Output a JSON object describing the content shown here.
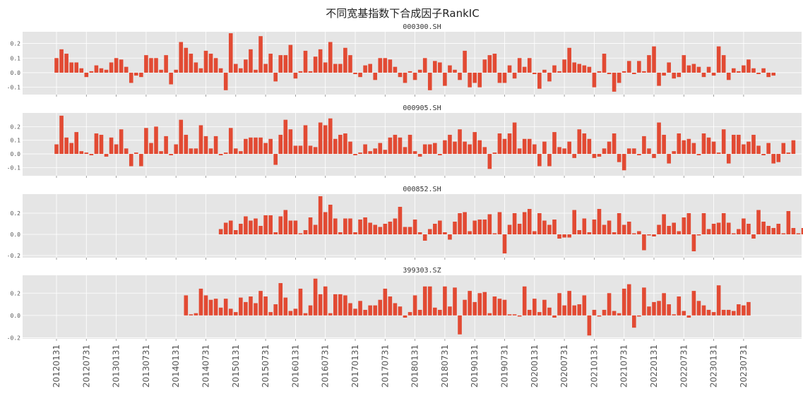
{
  "suptitle": "不同宽基指数下合成因子RankIC",
  "colors": {
    "bar": "#E24A33",
    "panel": "#E5E5E5",
    "grid": "#FFFFFF",
    "tick": "#555555"
  },
  "x_tick_labels": [
    "20120131",
    "20120731",
    "20130131",
    "20130731",
    "20140131",
    "20140731",
    "20150131",
    "20150731",
    "20160131",
    "20160731",
    "20170131",
    "20170731",
    "20180131",
    "20180731",
    "20190131",
    "20190731",
    "20200131",
    "20200731",
    "20210131",
    "20210731",
    "20220131",
    "20220731",
    "20230131",
    "20230731"
  ],
  "chart_data": [
    {
      "type": "bar",
      "title": "000300.SH",
      "start": "20120131",
      "ylim": [
        -0.15,
        0.28
      ],
      "yticks": [
        -0.1,
        0.0,
        0.1,
        0.2
      ],
      "ytick_labels": [
        "-0.1",
        "0.0",
        "0.1",
        "0.2"
      ],
      "values": [
        0.1,
        0.16,
        0.13,
        0.07,
        0.07,
        0.03,
        -0.03,
        0.01,
        0.05,
        0.03,
        0.02,
        0.07,
        0.1,
        0.09,
        0.04,
        -0.07,
        -0.02,
        -0.03,
        0.12,
        0.1,
        0.1,
        0.02,
        0.12,
        -0.08,
        0.02,
        0.21,
        0.17,
        0.13,
        0.07,
        0.03,
        0.15,
        0.13,
        0.1,
        0.03,
        -0.12,
        0.27,
        0.06,
        0.03,
        0.09,
        0.16,
        0.02,
        0.25,
        0.06,
        0.13,
        -0.06,
        0.12,
        0.12,
        0.19,
        -0.04,
        0.01,
        0.15,
        0.01,
        0.11,
        0.16,
        0.07,
        0.21,
        0.06,
        0.06,
        0.17,
        0.12,
        -0.01,
        -0.03,
        0.05,
        0.06,
        -0.05,
        0.1,
        0.1,
        0.09,
        0.04,
        -0.03,
        -0.07,
        0.01,
        -0.05,
        0.02,
        0.1,
        -0.12,
        0.08,
        0.07,
        -0.09,
        0.05,
        0.02,
        -0.05,
        0.15,
        -0.1,
        -0.07,
        -0.1,
        0.09,
        0.12,
        0.13,
        -0.07,
        -0.07,
        0.05,
        -0.04,
        0.1,
        0.04,
        0.1,
        -0.01,
        -0.11,
        0.02,
        -0.06,
        0.05,
        0.01,
        0.09,
        0.17,
        0.07,
        0.06,
        0.05,
        0.04,
        -0.1,
        0.01,
        0.13,
        -0.01,
        -0.13,
        -0.07,
        0.01,
        0.08,
        -0.01,
        0.08,
        0.01,
        0.12,
        0.18,
        -0.09,
        -0.02,
        0.07,
        -0.04,
        -0.03,
        0.12,
        0.05,
        0.06,
        0.04,
        -0.03,
        0.04,
        -0.02,
        0.18,
        0.12,
        -0.05,
        0.03,
        0.01,
        0.05,
        0.09,
        0.03,
        -0.01,
        0.03,
        -0.03,
        -0.02
      ]
    },
    {
      "type": "bar",
      "title": "000905.SH",
      "start": "20120131",
      "ylim": [
        -0.16,
        0.3
      ],
      "yticks": [
        -0.1,
        0.0,
        0.1,
        0.2
      ],
      "ytick_labels": [
        "-0.1",
        "0.0",
        "0.1",
        "0.2"
      ],
      "values": [
        0.07,
        0.28,
        0.12,
        0.08,
        0.16,
        0.02,
        0.01,
        -0.01,
        0.15,
        0.14,
        -0.02,
        0.12,
        0.07,
        0.18,
        0.04,
        -0.09,
        0.01,
        -0.09,
        0.19,
        0.08,
        0.2,
        0.02,
        0.13,
        -0.01,
        0.07,
        0.25,
        0.14,
        0.04,
        0.04,
        0.21,
        0.13,
        0.04,
        0.13,
        -0.01,
        0.01,
        0.19,
        0.04,
        0.02,
        0.11,
        0.12,
        0.12,
        0.12,
        0.08,
        0.11,
        -0.08,
        0.14,
        0.25,
        0.18,
        0.06,
        0.06,
        0.21,
        0.06,
        0.05,
        0.23,
        0.21,
        0.26,
        0.11,
        0.14,
        0.15,
        0.09,
        -0.01,
        0.01,
        0.07,
        0.02,
        0.04,
        0.08,
        0.03,
        0.12,
        0.14,
        0.12,
        0.05,
        0.14,
        0.02,
        -0.02,
        0.07,
        0.07,
        0.08,
        -0.01,
        0.1,
        0.14,
        0.09,
        0.18,
        0.09,
        0.07,
        0.16,
        0.1,
        0.05,
        -0.11,
        0.01,
        0.15,
        0.11,
        0.15,
        0.23,
        0.04,
        0.11,
        0.11,
        0.07,
        -0.09,
        0.09,
        -0.09,
        0.16,
        0.05,
        0.04,
        0.09,
        -0.03,
        0.18,
        0.15,
        0.11,
        -0.03,
        -0.02,
        0.04,
        0.09,
        0.15,
        -0.06,
        -0.12,
        0.04,
        0.04,
        -0.01,
        0.13,
        0.04,
        -0.03,
        0.23,
        0.14,
        -0.07,
        0.02,
        0.15,
        0.1,
        0.11,
        0.08,
        -0.01,
        0.15,
        0.12,
        0.09,
        0.01,
        0.18,
        -0.07,
        0.14,
        0.14,
        0.07,
        0.09,
        0.14,
        0.06,
        -0.01,
        0.08,
        -0.07,
        -0.06,
        0.08,
        0.01,
        0.1
      ]
    },
    {
      "type": "bar",
      "title": "000852.SH",
      "start": "20141031",
      "ylim": [
        -0.22,
        0.38
      ],
      "yticks": [
        -0.2,
        0.0,
        0.2
      ],
      "ytick_labels": [
        "-0.2",
        "0.0",
        "0.2"
      ],
      "values": [
        0.05,
        0.11,
        0.13,
        0.04,
        0.1,
        0.17,
        0.13,
        0.15,
        0.08,
        0.18,
        0.18,
        0.02,
        0.17,
        0.23,
        0.13,
        0.13,
        0.01,
        0.04,
        0.16,
        0.09,
        0.36,
        0.21,
        0.28,
        0.15,
        0.02,
        0.15,
        0.15,
        0.02,
        0.14,
        0.16,
        0.11,
        0.09,
        0.07,
        0.1,
        0.12,
        0.15,
        0.26,
        0.07,
        0.07,
        0.14,
        0.02,
        -0.06,
        0.05,
        0.1,
        0.13,
        0.02,
        -0.05,
        0.12,
        0.2,
        0.21,
        0.03,
        0.13,
        0.14,
        0.14,
        0.19,
        0.01,
        0.21,
        -0.18,
        0.09,
        0.2,
        0.1,
        0.21,
        0.24,
        0.03,
        0.2,
        0.13,
        0.09,
        0.14,
        -0.04,
        -0.03,
        -0.03,
        0.23,
        0.04,
        0.15,
        0.02,
        0.14,
        0.24,
        0.09,
        0.13,
        0.02,
        0.2,
        0.09,
        0.12,
        0.01,
        0.03,
        -0.15,
        -0.01,
        -0.02,
        0.09,
        0.19,
        0.08,
        0.11,
        0.03,
        0.16,
        0.2,
        -0.16,
        -0.01,
        0.2,
        0.05,
        0.1,
        0.11,
        0.2,
        0.11,
        0.01,
        0.05,
        0.15,
        0.1,
        -0.04,
        0.23,
        0.12,
        0.08,
        0.06,
        0.1,
        0.01,
        0.22,
        0.06,
        0.01,
        0.06,
        0.08,
        0.11
      ]
    },
    {
      "type": "bar",
      "title": "399303.SZ",
      "start": "20140331",
      "ylim": [
        -0.21,
        0.36
      ],
      "yticks": [
        -0.2,
        0.0,
        0.2
      ],
      "ytick_labels": [
        "-0.2",
        "0.0",
        "0.2"
      ],
      "values": [
        0.18,
        0.01,
        0.02,
        0.24,
        0.18,
        0.14,
        0.15,
        0.07,
        0.15,
        0.06,
        0.03,
        0.16,
        0.12,
        0.17,
        0.11,
        0.22,
        0.17,
        0.03,
        0.1,
        0.29,
        0.16,
        0.04,
        0.06,
        0.24,
        0.02,
        0.09,
        0.33,
        0.19,
        0.26,
        0.02,
        0.19,
        0.19,
        0.18,
        0.11,
        0.06,
        0.13,
        0.05,
        0.09,
        0.09,
        0.14,
        0.24,
        0.17,
        0.11,
        0.08,
        -0.02,
        0.03,
        0.18,
        0.05,
        0.26,
        0.26,
        0.07,
        0.05,
        0.26,
        0.08,
        0.25,
        -0.17,
        0.14,
        0.22,
        0.12,
        0.2,
        0.21,
        0.02,
        0.17,
        0.15,
        0.14,
        0.01,
        0.01,
        -0.01,
        0.26,
        0.05,
        0.15,
        0.03,
        0.14,
        0.07,
        -0.02,
        0.2,
        0.09,
        0.22,
        0.09,
        0.1,
        0.18,
        -0.18,
        0.05,
        -0.01,
        0.05,
        0.2,
        0.04,
        0.02,
        0.24,
        0.28,
        -0.11,
        -0.01,
        0.25,
        0.08,
        0.12,
        0.13,
        0.2,
        0.1,
        0.01,
        0.17,
        0.04,
        -0.02,
        0.22,
        0.13,
        0.09,
        0.05,
        0.03,
        0.27,
        0.05,
        0.05,
        0.04,
        0.1,
        0.09,
        0.12
      ]
    }
  ]
}
